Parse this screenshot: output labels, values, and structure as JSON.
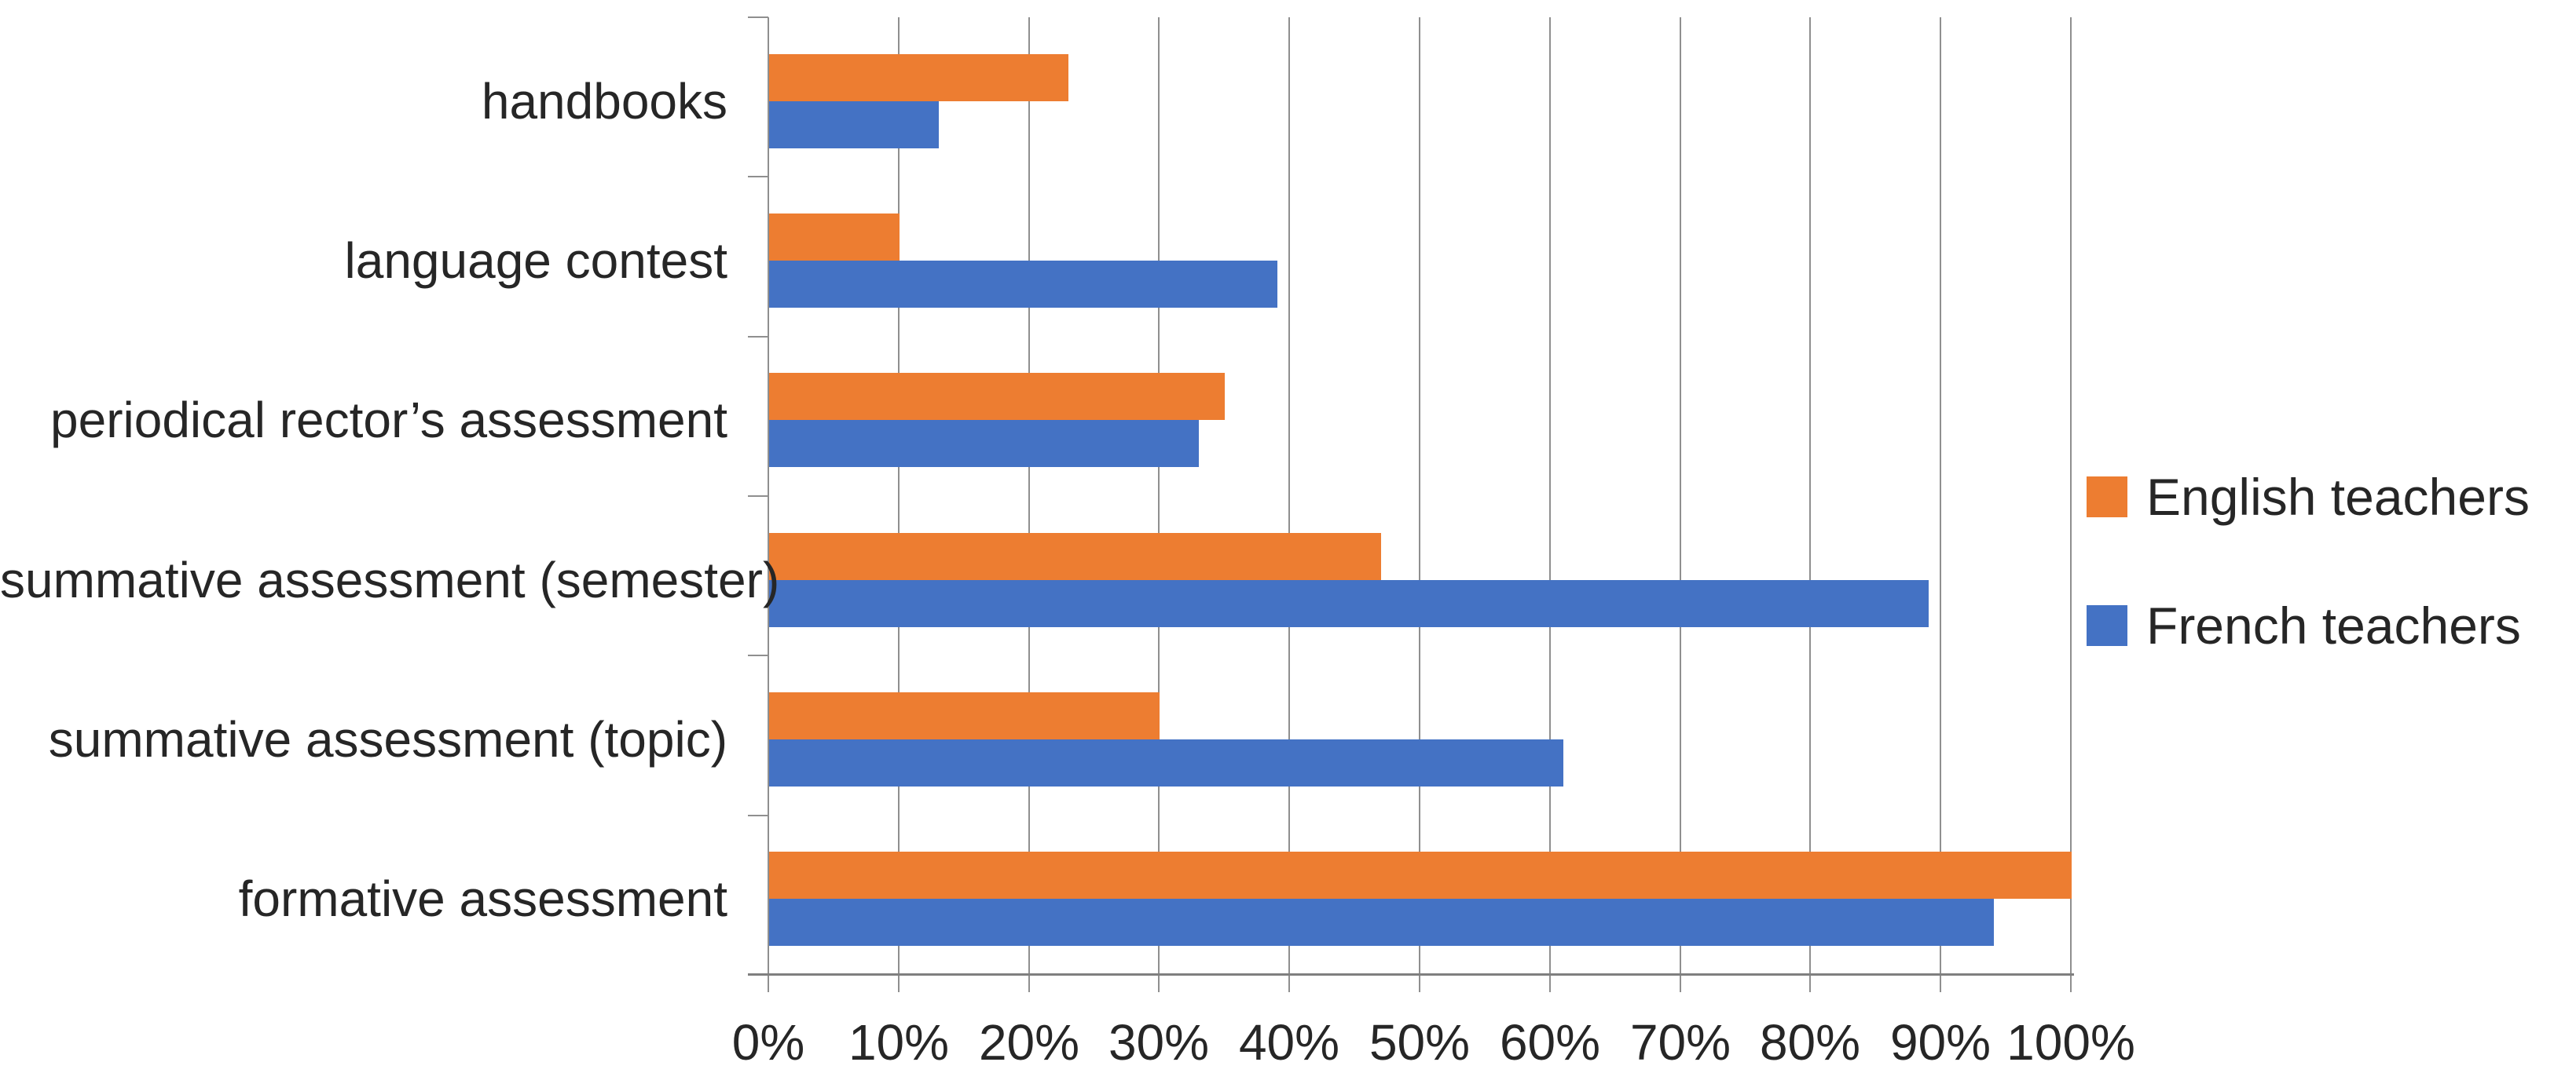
{
  "chart_data": {
    "type": "bar",
    "orientation": "horizontal",
    "title": "",
    "categories": [
      "handbooks",
      "language contest",
      "periodical rector’s assessment",
      "summative assessment (semester)",
      "summative assessment (topic)",
      "formative assessment"
    ],
    "series": [
      {
        "name": "English teachers",
        "color": "#ED7D31",
        "values": [
          23,
          10,
          35,
          47,
          30,
          100
        ]
      },
      {
        "name": "French teachers",
        "color": "#4472C4",
        "values": [
          13,
          39,
          33,
          89,
          61,
          94
        ]
      }
    ],
    "xlim": [
      0,
      100
    ],
    "x_ticks": [
      "0%",
      "10%",
      "20%",
      "30%",
      "40%",
      "50%",
      "60%",
      "70%",
      "80%",
      "90%",
      "100%"
    ],
    "grid": "vertical",
    "legend_position": "right-middle"
  }
}
